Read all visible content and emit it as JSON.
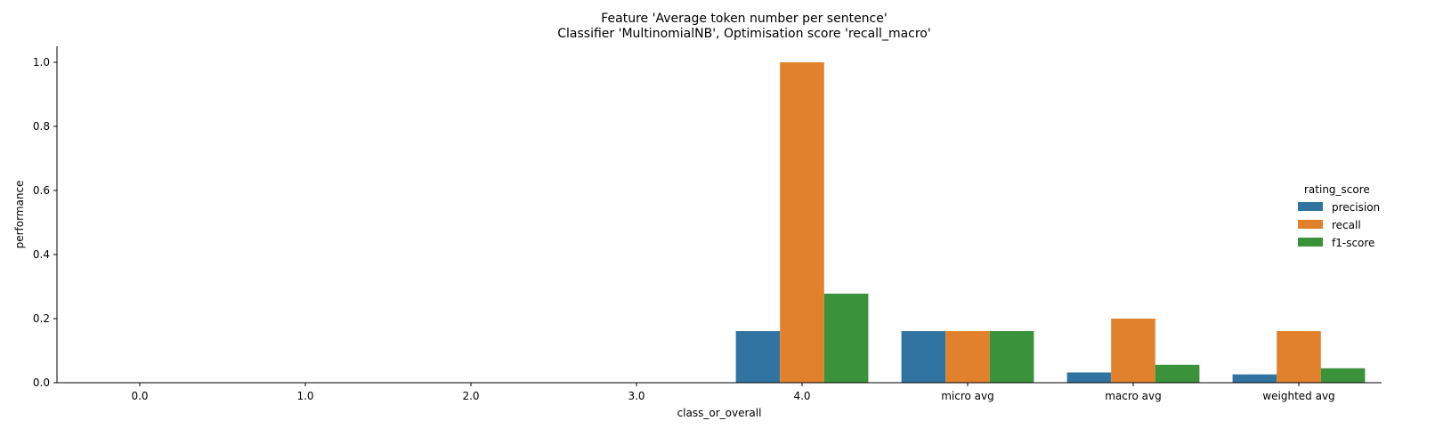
{
  "chart_data": {
    "type": "bar",
    "title": "Feature 'Average token number per sentence'",
    "subtitle": "Classifier 'MultinomialNB', Optimisation score 'recall_macro'",
    "xlabel": "class_or_overall",
    "ylabel": "performance",
    "ylim": [
      0,
      1.05
    ],
    "yticks": [
      0.0,
      0.2,
      0.4,
      0.6,
      0.8,
      1.0
    ],
    "ytick_labels": [
      "0.0",
      "0.2",
      "0.4",
      "0.6",
      "0.8",
      "1.0"
    ],
    "categories": [
      "0.0",
      "1.0",
      "2.0",
      "3.0",
      "4.0",
      "micro avg",
      "macro avg",
      "weighted avg"
    ],
    "legend_title": "rating_score",
    "legend_position": "right",
    "grid": false,
    "series": [
      {
        "name": "precision",
        "color": "#3274a1",
        "values": [
          0,
          0,
          0,
          0,
          0.161,
          0.161,
          0.032,
          0.026
        ]
      },
      {
        "name": "recall",
        "color": "#e1812c",
        "values": [
          0,
          0,
          0,
          0,
          1.0,
          0.161,
          0.2,
          0.161
        ]
      },
      {
        "name": "f1-score",
        "color": "#3a923a",
        "values": [
          0,
          0,
          0,
          0,
          0.278,
          0.161,
          0.056,
          0.045
        ]
      }
    ]
  }
}
